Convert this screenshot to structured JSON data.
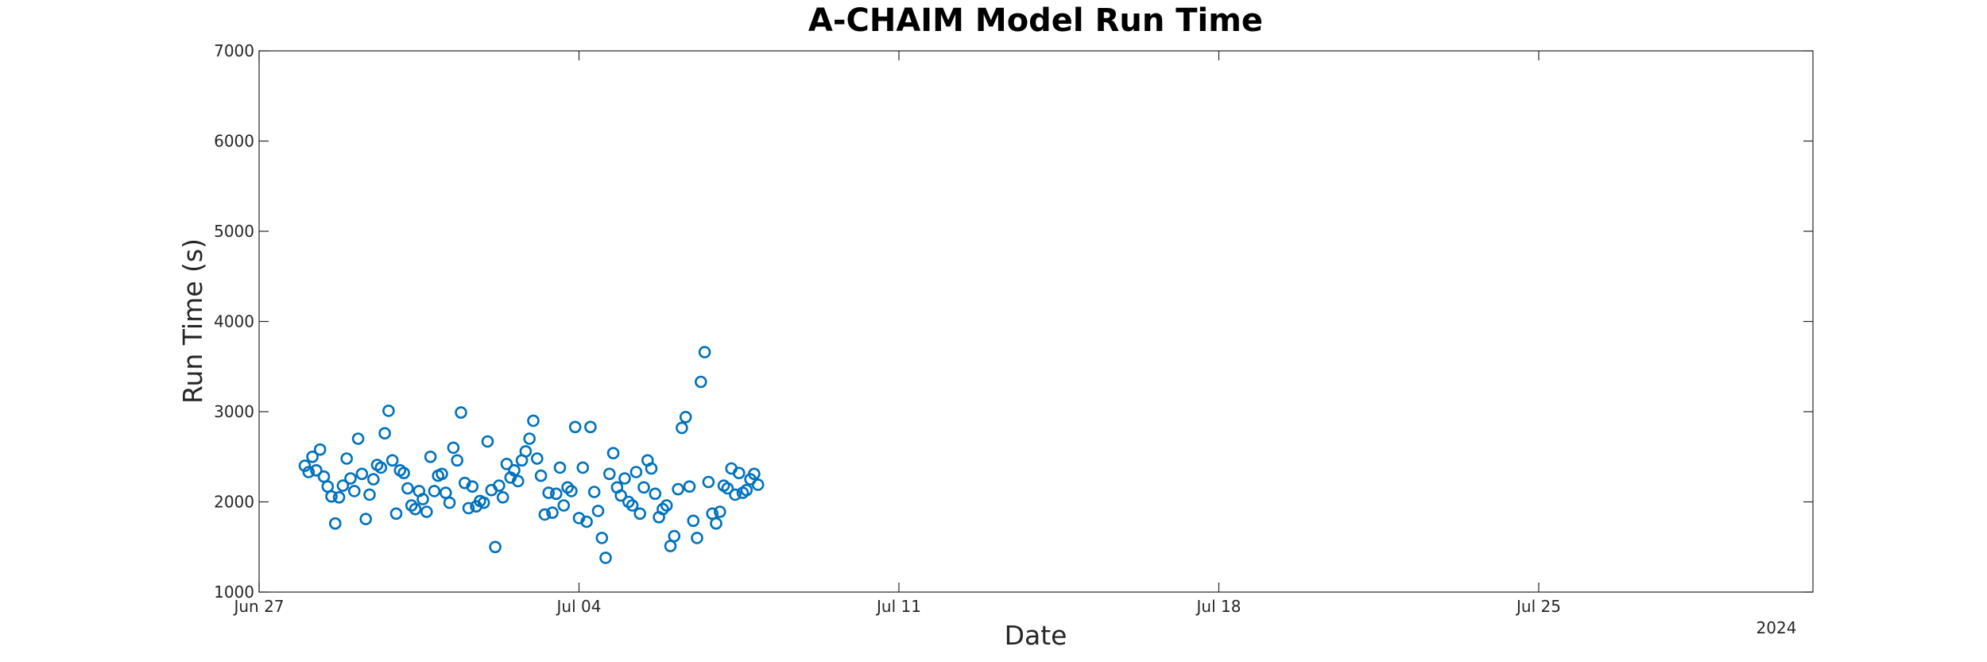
{
  "chart_data": {
    "type": "scatter",
    "title": "A-CHAIM Model Run Time",
    "xlabel": "Date",
    "ylabel": "Run Time (s)",
    "year_label": "2024",
    "x_unit": "date (2024, fractional days)",
    "xlim": [
      "2024-06-27",
      "2024-07-31"
    ],
    "ylim": [
      1000,
      7000
    ],
    "x_ticks": [
      {
        "date": "2024-06-27",
        "label": "Jun 27"
      },
      {
        "date": "2024-07-04",
        "label": "Jul 04"
      },
      {
        "date": "2024-07-11",
        "label": "Jul 11"
      },
      {
        "date": "2024-07-18",
        "label": "Jul 18"
      },
      {
        "date": "2024-07-25",
        "label": "Jul 25"
      }
    ],
    "y_ticks": [
      1000,
      2000,
      3000,
      4000,
      5000,
      6000,
      7000
    ],
    "grid": false,
    "legend": "none",
    "marker_color": "#0072BD",
    "series": [
      {
        "points": [
          [
            "2024-06-28T00:00",
            2400
          ],
          [
            "2024-06-28T02:00",
            2330
          ],
          [
            "2024-06-28T04:00",
            2500
          ],
          [
            "2024-06-28T06:00",
            2350
          ],
          [
            "2024-06-28T08:00",
            2580
          ],
          [
            "2024-06-28T10:00",
            2280
          ],
          [
            "2024-06-28T12:00",
            2170
          ],
          [
            "2024-06-28T14:00",
            2060
          ],
          [
            "2024-06-28T16:00",
            1760
          ],
          [
            "2024-06-28T18:00",
            2050
          ],
          [
            "2024-06-28T20:00",
            2180
          ],
          [
            "2024-06-28T22:00",
            2480
          ],
          [
            "2024-06-29T00:00",
            2260
          ],
          [
            "2024-06-29T02:00",
            2120
          ],
          [
            "2024-06-29T04:00",
            2700
          ],
          [
            "2024-06-29T06:00",
            2310
          ],
          [
            "2024-06-29T08:00",
            1810
          ],
          [
            "2024-06-29T10:00",
            2080
          ],
          [
            "2024-06-29T12:00",
            2250
          ],
          [
            "2024-06-29T14:00",
            2410
          ],
          [
            "2024-06-29T16:00",
            2380
          ],
          [
            "2024-06-29T18:00",
            2760
          ],
          [
            "2024-06-29T20:00",
            3010
          ],
          [
            "2024-06-29T22:00",
            2460
          ],
          [
            "2024-06-30T00:00",
            1870
          ],
          [
            "2024-06-30T02:00",
            2350
          ],
          [
            "2024-06-30T04:00",
            2320
          ],
          [
            "2024-06-30T06:00",
            2150
          ],
          [
            "2024-06-30T08:00",
            1960
          ],
          [
            "2024-06-30T10:00",
            1920
          ],
          [
            "2024-06-30T12:00",
            2120
          ],
          [
            "2024-06-30T14:00",
            2030
          ],
          [
            "2024-06-30T16:00",
            1890
          ],
          [
            "2024-06-30T18:00",
            2500
          ],
          [
            "2024-06-30T20:00",
            2120
          ],
          [
            "2024-06-30T22:00",
            2290
          ],
          [
            "2024-07-01T00:00",
            2310
          ],
          [
            "2024-07-01T02:00",
            2100
          ],
          [
            "2024-07-01T04:00",
            1990
          ],
          [
            "2024-07-01T06:00",
            2600
          ],
          [
            "2024-07-01T08:00",
            2460
          ],
          [
            "2024-07-01T10:00",
            2990
          ],
          [
            "2024-07-01T12:00",
            2210
          ],
          [
            "2024-07-01T14:00",
            1930
          ],
          [
            "2024-07-01T16:00",
            2170
          ],
          [
            "2024-07-01T18:00",
            1950
          ],
          [
            "2024-07-01T20:00",
            2010
          ],
          [
            "2024-07-01T22:00",
            1990
          ],
          [
            "2024-07-02T00:00",
            2670
          ],
          [
            "2024-07-02T02:00",
            2130
          ],
          [
            "2024-07-02T04:00",
            1500
          ],
          [
            "2024-07-02T06:00",
            2180
          ],
          [
            "2024-07-02T08:00",
            2050
          ],
          [
            "2024-07-02T10:00",
            2420
          ],
          [
            "2024-07-02T12:00",
            2270
          ],
          [
            "2024-07-02T14:00",
            2350
          ],
          [
            "2024-07-02T16:00",
            2230
          ],
          [
            "2024-07-02T18:00",
            2460
          ],
          [
            "2024-07-02T20:00",
            2560
          ],
          [
            "2024-07-02T22:00",
            2700
          ],
          [
            "2024-07-03T00:00",
            2900
          ],
          [
            "2024-07-03T02:00",
            2480
          ],
          [
            "2024-07-03T04:00",
            2290
          ],
          [
            "2024-07-03T06:00",
            1860
          ],
          [
            "2024-07-03T08:00",
            2100
          ],
          [
            "2024-07-03T10:00",
            1880
          ],
          [
            "2024-07-03T12:00",
            2090
          ],
          [
            "2024-07-03T14:00",
            2380
          ],
          [
            "2024-07-03T16:00",
            1960
          ],
          [
            "2024-07-03T18:00",
            2160
          ],
          [
            "2024-07-03T20:00",
            2120
          ],
          [
            "2024-07-03T22:00",
            2830
          ],
          [
            "2024-07-04T00:00",
            1820
          ],
          [
            "2024-07-04T02:00",
            2380
          ],
          [
            "2024-07-04T04:00",
            1780
          ],
          [
            "2024-07-04T06:00",
            2830
          ],
          [
            "2024-07-04T08:00",
            2110
          ],
          [
            "2024-07-04T10:00",
            1900
          ],
          [
            "2024-07-04T12:00",
            1600
          ],
          [
            "2024-07-04T14:00",
            1380
          ],
          [
            "2024-07-04T16:00",
            2310
          ],
          [
            "2024-07-04T18:00",
            2540
          ],
          [
            "2024-07-04T20:00",
            2160
          ],
          [
            "2024-07-04T22:00",
            2070
          ],
          [
            "2024-07-05T00:00",
            2260
          ],
          [
            "2024-07-05T02:00",
            2000
          ],
          [
            "2024-07-05T04:00",
            1960
          ],
          [
            "2024-07-05T06:00",
            2330
          ],
          [
            "2024-07-05T08:00",
            1870
          ],
          [
            "2024-07-05T10:00",
            2160
          ],
          [
            "2024-07-05T12:00",
            2460
          ],
          [
            "2024-07-05T14:00",
            2370
          ],
          [
            "2024-07-05T16:00",
            2090
          ],
          [
            "2024-07-05T18:00",
            1830
          ],
          [
            "2024-07-05T20:00",
            1920
          ],
          [
            "2024-07-05T22:00",
            1960
          ],
          [
            "2024-07-06T00:00",
            1510
          ],
          [
            "2024-07-06T02:00",
            1620
          ],
          [
            "2024-07-06T04:00",
            2140
          ],
          [
            "2024-07-06T06:00",
            2820
          ],
          [
            "2024-07-06T08:00",
            2940
          ],
          [
            "2024-07-06T10:00",
            2170
          ],
          [
            "2024-07-06T12:00",
            1790
          ],
          [
            "2024-07-06T14:00",
            1600
          ],
          [
            "2024-07-06T16:00",
            3330
          ],
          [
            "2024-07-06T18:00",
            3660
          ],
          [
            "2024-07-06T20:00",
            2220
          ],
          [
            "2024-07-06T22:00",
            1870
          ],
          [
            "2024-07-07T00:00",
            1760
          ],
          [
            "2024-07-07T02:00",
            1890
          ],
          [
            "2024-07-07T04:00",
            2180
          ],
          [
            "2024-07-07T06:00",
            2150
          ],
          [
            "2024-07-07T08:00",
            2370
          ],
          [
            "2024-07-07T10:00",
            2080
          ],
          [
            "2024-07-07T12:00",
            2320
          ],
          [
            "2024-07-07T14:00",
            2100
          ],
          [
            "2024-07-07T16:00",
            2130
          ],
          [
            "2024-07-07T18:00",
            2250
          ],
          [
            "2024-07-07T20:00",
            2310
          ],
          [
            "2024-07-07T22:00",
            2190
          ]
        ]
      }
    ]
  }
}
